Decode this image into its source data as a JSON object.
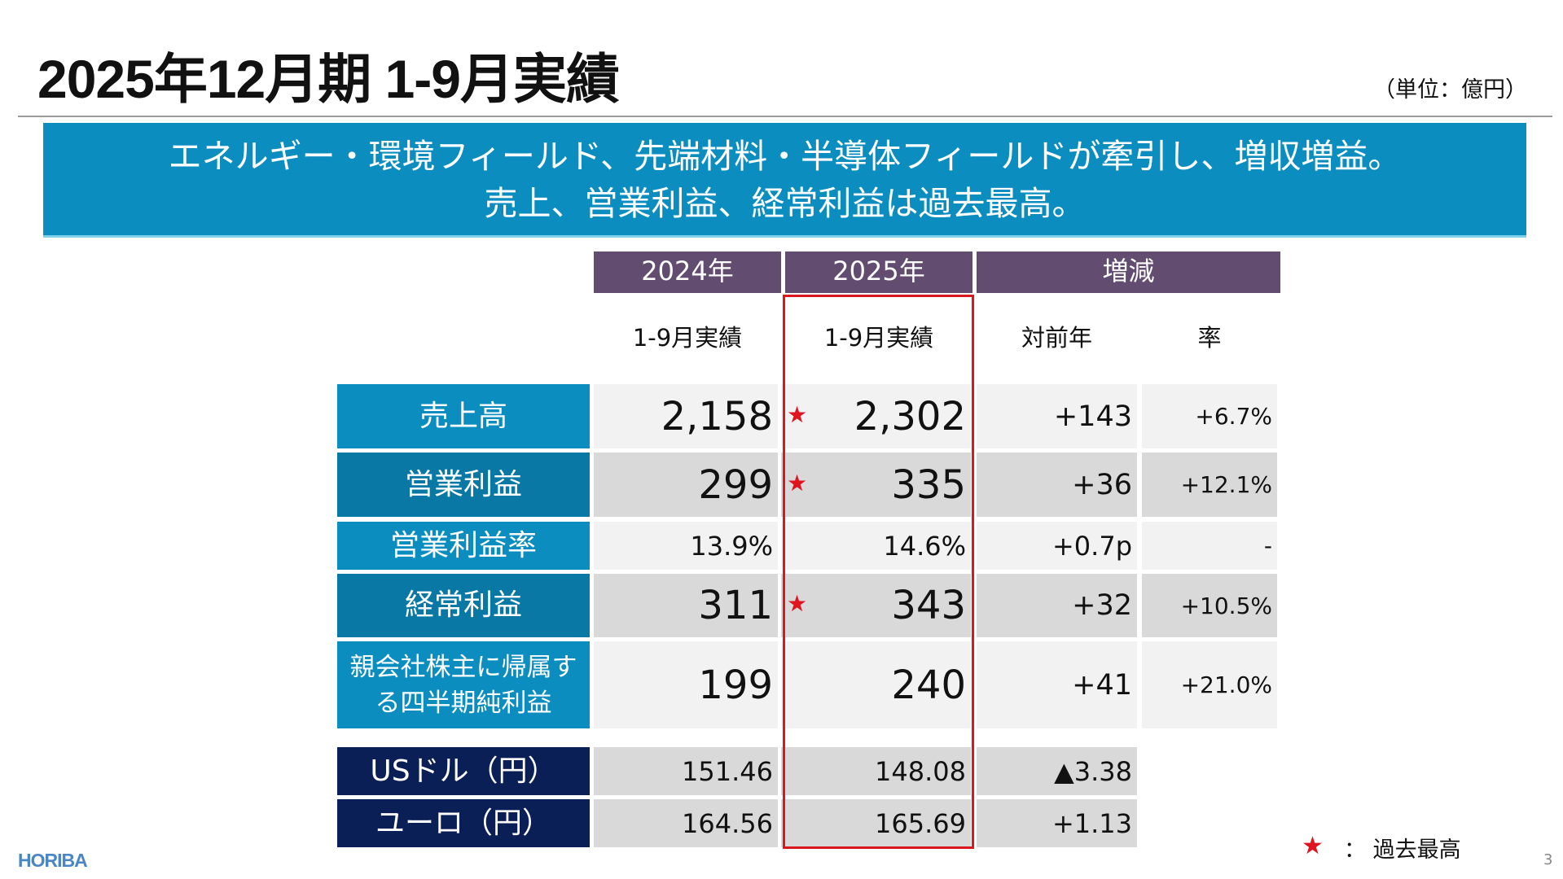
{
  "title": "2025年12月期 1-9月実績",
  "unit": "（単位：億円）",
  "banner": {
    "line1": "エネルギー・環境フィールド、先端材料・半導体フィールドが牽引し、増収増益。",
    "line2": "売上、営業利益、経常利益は過去最高。"
  },
  "table": {
    "headers": [
      "2024年",
      "2025年",
      "増減"
    ],
    "subheaders": [
      "1-9月実績",
      "1-9月実績",
      "対前年",
      "率"
    ],
    "rows": [
      {
        "label": "売上高",
        "y2024": "2,158",
        "y2025": "2,302",
        "diff": "+143",
        "rate": "+6.7%",
        "record": true
      },
      {
        "label": "営業利益",
        "y2024": "299",
        "y2025": "335",
        "diff": "+36",
        "rate": "+12.1%",
        "record": true
      },
      {
        "label": "営業利益率",
        "y2024": "13.9%",
        "y2025": "14.6%",
        "diff": "+0.7p",
        "rate": "-",
        "record": false
      },
      {
        "label": "経常利益",
        "y2024": "311",
        "y2025": "343",
        "diff": "+32",
        "rate": "+10.5%",
        "record": true
      },
      {
        "label": "親会社株主に帰属する四半期純利益",
        "y2024": "199",
        "y2025": "240",
        "diff": "+41",
        "rate": "+21.0%",
        "record": false
      },
      {
        "label": "USドル（円）",
        "y2024": "151.46",
        "y2025": "148.08",
        "diff": "▲3.38",
        "record": false
      },
      {
        "label": "ユーロ（円）",
        "y2024": "164.56",
        "y2025": "165.69",
        "diff": "+1.13",
        "record": false
      }
    ]
  },
  "legend": {
    "icon": "star-icon",
    "text": "：  過去最高"
  },
  "logo": "HORIBA",
  "page_number": "3",
  "colors": {
    "banner": "#0b8dc0",
    "header": "#624c70",
    "label_light": "#0b8dc0",
    "label_dark": "#0a78a4",
    "label_fx": "#0b1f57",
    "highlight_box": "#d9191f",
    "star": "#e0141e"
  }
}
